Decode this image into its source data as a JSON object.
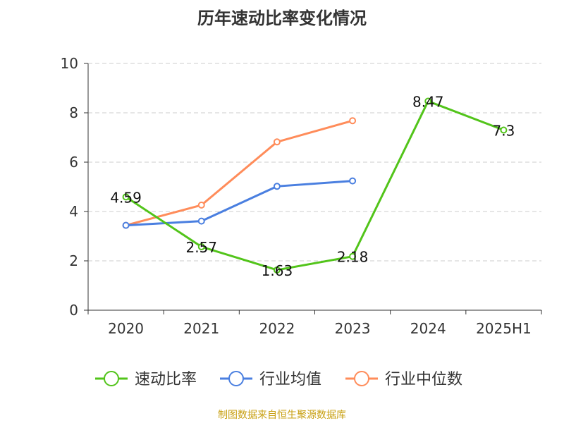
{
  "chart_data": {
    "type": "line",
    "title": "历年速动比率变化情况",
    "categories": [
      "2020",
      "2021",
      "2022",
      "2023",
      "2024",
      "2025H1"
    ],
    "ylim": [
      0,
      10
    ],
    "yticks": [
      "0",
      "2",
      "4",
      "6",
      "8",
      "10"
    ],
    "grid": true,
    "legend_position": "bottom",
    "series": [
      {
        "name": "速动比率",
        "color": "#52c41a",
        "values": [
          4.59,
          2.57,
          1.63,
          2.18,
          8.47,
          7.3
        ],
        "labels": [
          "4.59",
          "2.57",
          "1.63",
          "2.18",
          "8.47",
          "7.3"
        ]
      },
      {
        "name": "行业均值",
        "color": "#4a7fe0",
        "values": [
          3.44,
          3.61,
          5.02,
          5.24,
          null,
          null
        ]
      },
      {
        "name": "行业中位数",
        "color": "#ff8c5a",
        "values": [
          3.44,
          4.26,
          6.82,
          7.68,
          null,
          null
        ]
      }
    ]
  },
  "source": "制图数据来自恒生聚源数据库"
}
